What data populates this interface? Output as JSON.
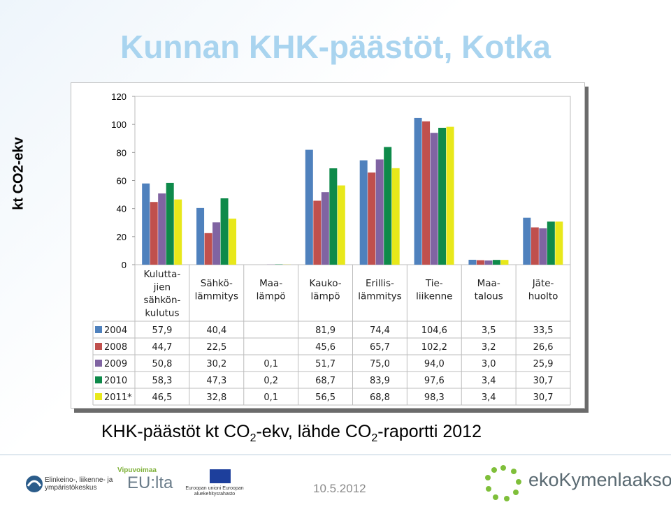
{
  "title": "Kunnan KHK-päästöt, Kotka",
  "caption": {
    "pre": "KHK-päästöt kt CO",
    "sub1": "2",
    "mid": "-ekv, lähde CO",
    "sub2": "2",
    "post": "-raportti 2012"
  },
  "date": "10.5.2012",
  "logos": {
    "ely": "Elinkeino-, liikenne- ja ympäristökeskus",
    "vipu_top": "Vipuvoimaa",
    "vipu_main": "EU:lta",
    "eu": "Euroopan unioni Euroopan aluekehitysrahasto",
    "eko": "ekoKymenlaakso"
  },
  "chart_data": {
    "type": "bar",
    "ylabel": "kt CO2-ekv",
    "ylim": [
      0,
      120
    ],
    "yticks": [
      0,
      20,
      40,
      60,
      80,
      100,
      120
    ],
    "categories": [
      [
        "Kulutta-",
        "jien",
        "sähkön-",
        "kulutus"
      ],
      [
        "Sähkö-",
        "lämmitys"
      ],
      [
        "Maa-",
        "lämpö"
      ],
      [
        "Kauko-",
        "lämpö"
      ],
      [
        "Erillis-",
        "lämmitys"
      ],
      [
        "Tie-",
        "liikenne"
      ],
      [
        "Maa-",
        "talous"
      ],
      [
        "Jäte-",
        "huolto"
      ]
    ],
    "series": [
      {
        "name": "2004",
        "color": "#4f81bd",
        "values": [
          57.9,
          40.4,
          null,
          81.9,
          74.4,
          104.6,
          3.5,
          33.5
        ],
        "labels": [
          "57,9",
          "40,4",
          "",
          "81,9",
          "74,4",
          "104,6",
          "3,5",
          "33,5"
        ]
      },
      {
        "name": "2008",
        "color": "#c0504d",
        "values": [
          44.7,
          22.5,
          null,
          45.6,
          65.7,
          102.2,
          3.2,
          26.6
        ],
        "labels": [
          "44,7",
          "22,5",
          "",
          "45,6",
          "65,7",
          "102,2",
          "3,2",
          "26,6"
        ]
      },
      {
        "name": "2009",
        "color": "#8064a2",
        "values": [
          50.8,
          30.2,
          0.1,
          51.7,
          75.0,
          94.0,
          3.0,
          25.9
        ],
        "labels": [
          "50,8",
          "30,2",
          "0,1",
          "51,7",
          "75,0",
          "94,0",
          "3,0",
          "25,9"
        ]
      },
      {
        "name": "2010",
        "color": "#0e8a4a",
        "values": [
          58.3,
          47.3,
          0.2,
          68.7,
          83.9,
          97.6,
          3.4,
          30.7
        ],
        "labels": [
          "58,3",
          "47,3",
          "0,2",
          "68,7",
          "83,9",
          "97,6",
          "3,4",
          "30,7"
        ]
      },
      {
        "name": "2011*",
        "color": "#e8e81a",
        "values": [
          46.5,
          32.8,
          0.1,
          56.5,
          68.8,
          98.3,
          3.4,
          30.7
        ],
        "labels": [
          "46,5",
          "32,8",
          "0,1",
          "56,5",
          "68,8",
          "98,3",
          "3,4",
          "30,7"
        ]
      }
    ]
  }
}
